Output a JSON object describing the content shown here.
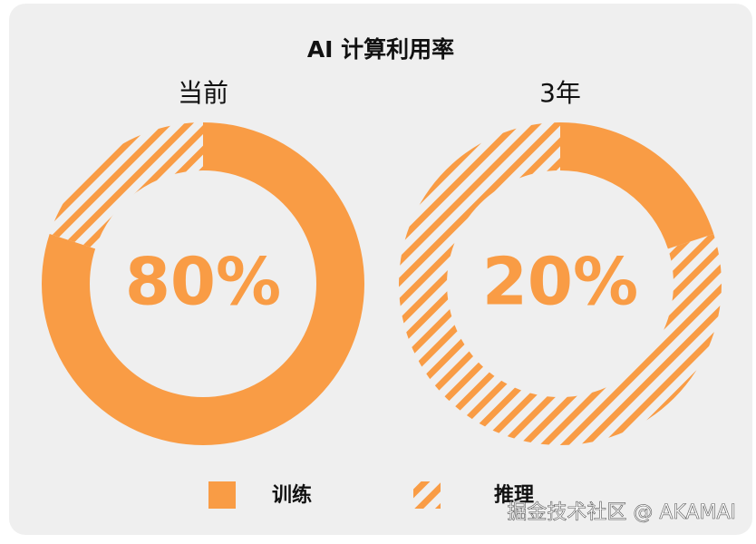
{
  "chart_data": {
    "type": "donut",
    "title": "AI 计算利用率",
    "categories": [
      "训练",
      "推理"
    ],
    "colors": [
      "#f99c45",
      "#f99c45"
    ],
    "hatched": [
      false,
      true
    ],
    "series": [
      {
        "name": "当前",
        "values": [
          80,
          20
        ],
        "value_labels": [
          "80%",
          null
        ]
      },
      {
        "name": "3年",
        "values": [
          20,
          80
        ],
        "value_labels": [
          "20%",
          null
        ]
      }
    ]
  },
  "watermark": "掘金技术社区 @ AKAMAI"
}
